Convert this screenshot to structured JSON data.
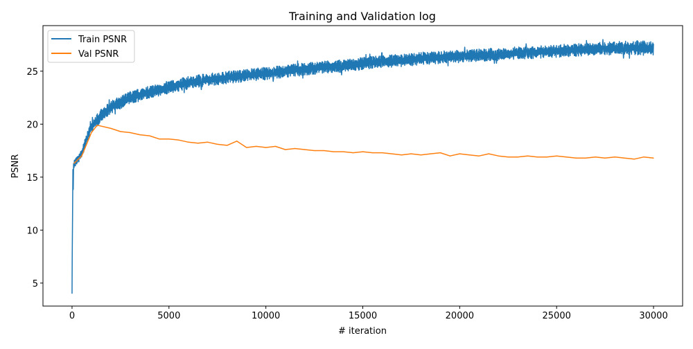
{
  "chart_data": {
    "type": "line",
    "title": "Training and Validation log",
    "xlabel": "# iteration",
    "ylabel": "PSNR",
    "xlim": [
      -1500,
      31500
    ],
    "ylim": [
      2.83,
      29.3
    ],
    "xticks": [
      0,
      5000,
      10000,
      15000,
      20000,
      25000,
      30000
    ],
    "yticks": [
      5,
      10,
      15,
      20,
      25
    ],
    "grid": false,
    "legend_position": "top-left",
    "series": [
      {
        "name": "Train PSNR",
        "color": "#1f77b4",
        "style": "noisy band (low/high envelope per iteration)",
        "envelope": [
          [
            0,
            4.0,
            4.0
          ],
          [
            30,
            10.5,
            16.0
          ],
          [
            100,
            15.8,
            16.6
          ],
          [
            300,
            16.3,
            17.0
          ],
          [
            500,
            16.8,
            17.6
          ],
          [
            700,
            17.8,
            18.8
          ],
          [
            1000,
            19.2,
            20.3
          ],
          [
            1500,
            20.2,
            21.4
          ],
          [
            2000,
            21.0,
            22.2
          ],
          [
            3000,
            21.9,
            23.1
          ],
          [
            4000,
            22.4,
            23.6
          ],
          [
            5000,
            22.9,
            24.1
          ],
          [
            6000,
            23.3,
            24.5
          ],
          [
            7000,
            23.6,
            24.8
          ],
          [
            8000,
            23.8,
            25.0
          ],
          [
            9000,
            24.0,
            25.2
          ],
          [
            10000,
            24.2,
            25.4
          ],
          [
            11000,
            24.4,
            25.6
          ],
          [
            12000,
            24.6,
            25.8
          ],
          [
            13000,
            24.8,
            26.0
          ],
          [
            14000,
            24.9,
            26.1
          ],
          [
            15000,
            25.1,
            26.3
          ],
          [
            16000,
            25.3,
            26.5
          ],
          [
            17000,
            25.4,
            26.6
          ],
          [
            18000,
            25.6,
            26.8
          ],
          [
            19000,
            25.7,
            26.9
          ],
          [
            20000,
            25.8,
            27.0
          ],
          [
            21000,
            25.9,
            27.1
          ],
          [
            22000,
            26.0,
            27.2
          ],
          [
            23000,
            26.1,
            27.3
          ],
          [
            24000,
            26.2,
            27.4
          ],
          [
            25000,
            26.3,
            27.5
          ],
          [
            26000,
            26.4,
            27.6
          ],
          [
            27000,
            26.5,
            27.7
          ],
          [
            28000,
            26.5,
            27.8
          ],
          [
            29000,
            26.5,
            27.9
          ],
          [
            30000,
            26.5,
            27.8
          ]
        ]
      },
      {
        "name": "Val PSNR",
        "color": "#ff7f0e",
        "x": [
          100,
          500,
          1000,
          1300,
          2000,
          2500,
          3000,
          3500,
          4000,
          4500,
          5000,
          5500,
          6000,
          6500,
          7000,
          7500,
          8000,
          8500,
          9000,
          9500,
          10000,
          10500,
          11000,
          11500,
          12000,
          12500,
          13000,
          13500,
          14000,
          14500,
          15000,
          15500,
          16000,
          16500,
          17000,
          17500,
          18000,
          18500,
          19000,
          19500,
          20000,
          20500,
          21000,
          21500,
          22000,
          22500,
          23000,
          23500,
          24000,
          24500,
          25000,
          25500,
          26000,
          26500,
          27000,
          27500,
          28000,
          28500,
          29000,
          29500,
          30000
        ],
        "y": [
          16.3,
          17.0,
          19.2,
          19.9,
          19.6,
          19.3,
          19.2,
          19.0,
          18.9,
          18.6,
          18.6,
          18.5,
          18.3,
          18.2,
          18.3,
          18.1,
          18.0,
          18.4,
          17.8,
          17.9,
          17.8,
          17.9,
          17.6,
          17.7,
          17.6,
          17.5,
          17.5,
          17.4,
          17.4,
          17.3,
          17.4,
          17.3,
          17.3,
          17.2,
          17.1,
          17.2,
          17.1,
          17.2,
          17.3,
          17.0,
          17.2,
          17.1,
          17.0,
          17.2,
          17.0,
          16.9,
          16.9,
          17.0,
          16.9,
          16.9,
          17.0,
          16.9,
          16.8,
          16.8,
          16.9,
          16.8,
          16.9,
          16.8,
          16.7,
          16.9,
          16.8
        ]
      }
    ]
  }
}
